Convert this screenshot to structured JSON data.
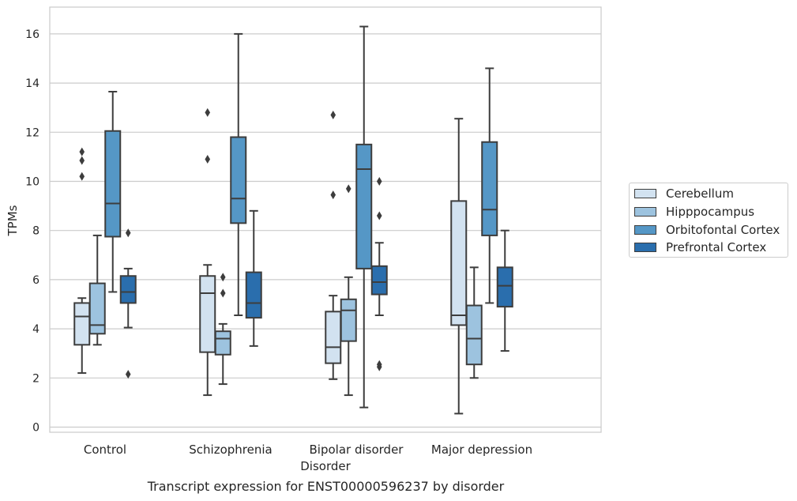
{
  "caption": "Transcript expression for ENST00000596237 by disorder",
  "chart_data": {
    "type": "box",
    "xlabel": "Disorder",
    "ylabel": "TPMs",
    "ylim": [
      -0.2,
      17.1
    ],
    "yticks": [
      0,
      2,
      4,
      6,
      8,
      10,
      12,
      14,
      16
    ],
    "grid": "horizontal",
    "legend_position": "right",
    "categories": [
      "Control",
      "Schizophrenia",
      "Bipolar disorder",
      "Major depression"
    ],
    "series": [
      {
        "name": "Cerebellum",
        "color": "#d2e2f0",
        "boxes": [
          {
            "category": "Control",
            "whislo": 2.2,
            "q1": 3.35,
            "med": 4.5,
            "q3": 5.05,
            "whishi": 5.25,
            "fliers": [
              10.2,
              10.85,
              11.2
            ]
          },
          {
            "category": "Schizophrenia",
            "whislo": 1.3,
            "q1": 3.05,
            "med": 5.45,
            "q3": 6.15,
            "whishi": 6.6,
            "fliers": [
              10.9,
              12.8
            ]
          },
          {
            "category": "Bipolar disorder",
            "whislo": 1.95,
            "q1": 2.6,
            "med": 3.25,
            "q3": 4.7,
            "whishi": 5.35,
            "fliers": [
              9.45,
              12.7
            ]
          },
          {
            "category": "Major depression",
            "whislo": 0.55,
            "q1": 4.15,
            "med": 4.55,
            "q3": 9.2,
            "whishi": 12.55,
            "fliers": []
          }
        ]
      },
      {
        "name": "Hipppocampus",
        "color": "#9dc3df",
        "boxes": [
          {
            "category": "Control",
            "whislo": 3.35,
            "q1": 3.8,
            "med": 4.15,
            "q3": 5.85,
            "whishi": 7.8,
            "fliers": []
          },
          {
            "category": "Schizophrenia",
            "whislo": 1.75,
            "q1": 2.95,
            "med": 3.6,
            "q3": 3.9,
            "whishi": 4.2,
            "fliers": [
              5.45,
              6.1
            ]
          },
          {
            "category": "Bipolar disorder",
            "whislo": 1.3,
            "q1": 3.5,
            "med": 4.75,
            "q3": 5.2,
            "whishi": 6.1,
            "fliers": [
              9.7
            ]
          },
          {
            "category": "Major depression",
            "whislo": 2.0,
            "q1": 2.55,
            "med": 3.6,
            "q3": 4.95,
            "whishi": 6.5,
            "fliers": []
          }
        ]
      },
      {
        "name": "Orbitofontal Cortex",
        "color": "#5597c6",
        "boxes": [
          {
            "category": "Control",
            "whislo": 5.5,
            "q1": 7.75,
            "med": 9.1,
            "q3": 12.05,
            "whishi": 13.65,
            "fliers": []
          },
          {
            "category": "Schizophrenia",
            "whislo": 4.55,
            "q1": 8.3,
            "med": 9.3,
            "q3": 11.8,
            "whishi": 16.0,
            "fliers": []
          },
          {
            "category": "Bipolar disorder",
            "whislo": 0.8,
            "q1": 6.45,
            "med": 10.5,
            "q3": 11.5,
            "whishi": 16.3,
            "fliers": []
          },
          {
            "category": "Major depression",
            "whislo": 5.05,
            "q1": 7.8,
            "med": 8.85,
            "q3": 11.6,
            "whishi": 14.6,
            "fliers": []
          }
        ]
      },
      {
        "name": "Prefrontal Cortex",
        "color": "#2a6ead",
        "boxes": [
          {
            "category": "Control",
            "whislo": 4.05,
            "q1": 5.05,
            "med": 5.5,
            "q3": 6.15,
            "whishi": 6.45,
            "fliers": [
              2.15,
              7.9
            ]
          },
          {
            "category": "Schizophrenia",
            "whislo": 3.3,
            "q1": 4.45,
            "med": 5.05,
            "q3": 6.3,
            "whishi": 8.8,
            "fliers": []
          },
          {
            "category": "Bipolar disorder",
            "whislo": 4.55,
            "q1": 5.4,
            "med": 5.9,
            "q3": 6.55,
            "whishi": 7.5,
            "fliers": [
              2.45,
              2.55,
              8.6,
              10.0
            ]
          },
          {
            "category": "Major depression",
            "whislo": 3.1,
            "q1": 4.9,
            "med": 5.75,
            "q3": 6.5,
            "whishi": 8.0,
            "fliers": []
          }
        ]
      }
    ]
  }
}
